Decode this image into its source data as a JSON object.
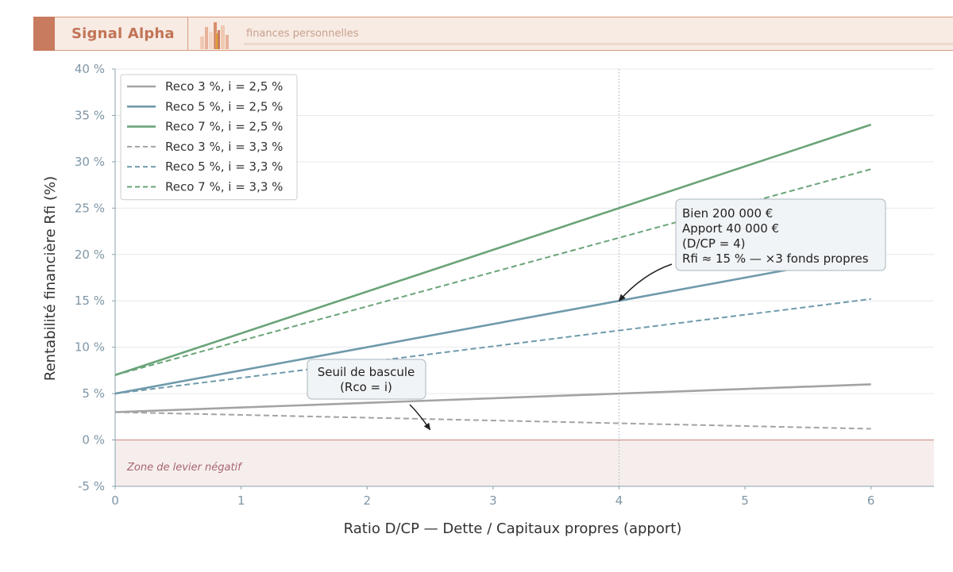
{
  "header": {
    "brand": "Signal Alpha",
    "subtitle": "finances personnelles",
    "accent": "#c87b5f"
  },
  "chart_data": {
    "type": "line",
    "title": "",
    "xlabel": "Ratio D/CP — Dette / Capitaux propres (apport)",
    "ylabel": "Rentabilité financière Rfi (%)",
    "xlim": [
      0,
      6.5
    ],
    "ylim": [
      -5,
      40
    ],
    "xticks": [
      0,
      1,
      2,
      3,
      4,
      5,
      6
    ],
    "xtick_labels": [
      "0",
      "1",
      "2",
      "3",
      "4",
      "5",
      "6"
    ],
    "yticks": [
      -5,
      0,
      5,
      10,
      15,
      20,
      25,
      30,
      35,
      40
    ],
    "ytick_labels": [
      "-5 %",
      "0 %",
      "5 %",
      "10 %",
      "15 %",
      "20 %",
      "25 %",
      "30 %",
      "35 %",
      "40 %"
    ],
    "grid": "horizontal",
    "legend_position": "top-left",
    "series": [
      {
        "name": "Reco 3 %, i = 2,5 %",
        "x": [
          0,
          6
        ],
        "values": [
          3,
          6
        ],
        "color": "#a3a3a3",
        "dash": "solid"
      },
      {
        "name": "Reco 5 %, i = 2,5 %",
        "x": [
          0,
          6
        ],
        "values": [
          5,
          20
        ],
        "color": "#6f9aab",
        "dash": "solid"
      },
      {
        "name": "Reco 7 %, i = 2,5 %",
        "x": [
          0,
          6
        ],
        "values": [
          7,
          34
        ],
        "color": "#6aa478",
        "dash": "solid"
      },
      {
        "name": "Reco 3 %, i = 3,3 %",
        "x": [
          0,
          6
        ],
        "values": [
          3,
          1.2
        ],
        "color": "#a3a3a3",
        "dash": "dashed"
      },
      {
        "name": "Reco 5 %, i = 3,3 %",
        "x": [
          0,
          6
        ],
        "values": [
          5,
          15.2
        ],
        "color": "#6f9aab",
        "dash": "dashed"
      },
      {
        "name": "Reco 7 %, i = 3,3 %",
        "x": [
          0,
          6
        ],
        "values": [
          7,
          29.2
        ],
        "color": "#6aa478",
        "dash": "dashed"
      }
    ],
    "reference_lines": {
      "vertical_x": 4,
      "horizontal_y": 0
    },
    "negative_zone": {
      "label": "Zone de levier négatif",
      "y_from": -5,
      "y_to": 0,
      "color": "#f6eeec"
    },
    "annotations": [
      {
        "lines": [
          "Bien 200 000 €",
          "Apport 40 000 €",
          "(D/CP = 4)",
          "Rfi ≈ 15 % — ×3 fonds propres"
        ],
        "target": [
          4,
          15
        ]
      },
      {
        "lines": [
          "Seuil de bascule",
          "(Rco = i)"
        ],
        "target": [
          2.5,
          1.1
        ]
      }
    ]
  }
}
